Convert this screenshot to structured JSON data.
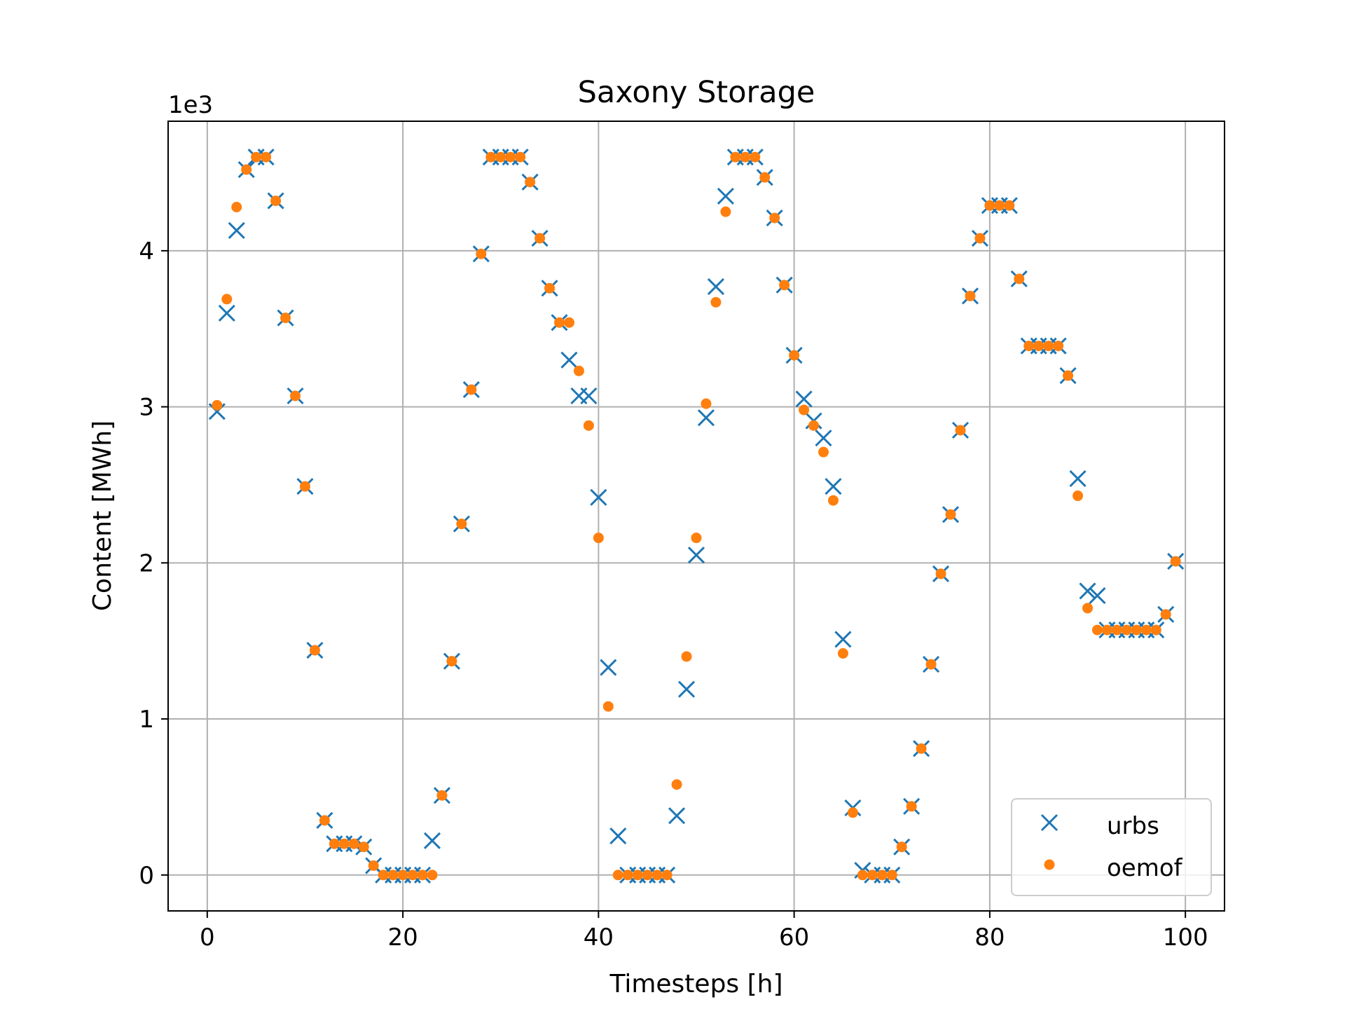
{
  "chart_data": {
    "type": "scatter",
    "title": "Saxony Storage",
    "xlabel": "Timesteps [h]",
    "ylabel": "Content [MWh]",
    "y_multiplier_label": "1e3",
    "xlim": [
      -4,
      104
    ],
    "ylim": [
      -0.23,
      4.83
    ],
    "xticks": [
      0,
      20,
      40,
      60,
      80,
      100
    ],
    "yticks": [
      0,
      1,
      2,
      3,
      4
    ],
    "grid": true,
    "legend_position": "lower right",
    "x": [
      1,
      2,
      3,
      4,
      5,
      6,
      7,
      8,
      9,
      10,
      11,
      12,
      13,
      14,
      15,
      16,
      17,
      18,
      19,
      20,
      21,
      22,
      23,
      24,
      25,
      26,
      27,
      28,
      29,
      30,
      31,
      32,
      33,
      34,
      35,
      36,
      37,
      38,
      39,
      40,
      41,
      42,
      43,
      44,
      45,
      46,
      47,
      48,
      49,
      50,
      51,
      52,
      53,
      54,
      55,
      56,
      57,
      58,
      59,
      60,
      61,
      62,
      63,
      64,
      65,
      66,
      67,
      68,
      69,
      70,
      71,
      72,
      73,
      74,
      75,
      76,
      77,
      78,
      79,
      80,
      81,
      82,
      83,
      84,
      85,
      86,
      87,
      88,
      89,
      90,
      91,
      92,
      93,
      94,
      95,
      96,
      97,
      98,
      99
    ],
    "series": [
      {
        "name": "urbs",
        "marker": "x",
        "color": "#1f77b4",
        "values": [
          2.97,
          3.6,
          4.13,
          4.52,
          4.6,
          4.6,
          4.32,
          3.57,
          3.07,
          2.49,
          1.44,
          0.35,
          0.2,
          0.2,
          0.2,
          0.18,
          0.06,
          0,
          0,
          0,
          0,
          0,
          0.22,
          0.51,
          1.37,
          2.25,
          3.11,
          3.98,
          4.6,
          4.6,
          4.6,
          4.6,
          4.44,
          4.08,
          3.76,
          3.54,
          3.3,
          3.07,
          3.07,
          2.42,
          1.33,
          0.25,
          0,
          0,
          0,
          0,
          0,
          0.38,
          1.19,
          2.05,
          2.93,
          3.77,
          4.35,
          4.6,
          4.6,
          4.6,
          4.47,
          4.21,
          3.78,
          3.33,
          3.05,
          2.91,
          2.8,
          2.49,
          1.51,
          0.43,
          0.03,
          0,
          0,
          0,
          0.18,
          0.44,
          0.81,
          1.35,
          1.93,
          2.31,
          2.85,
          3.71,
          4.08,
          4.29,
          4.29,
          4.29,
          3.82,
          3.39,
          3.39,
          3.39,
          3.39,
          3.2,
          2.54,
          1.82,
          1.79,
          1.57,
          1.57,
          1.57,
          1.57,
          1.57,
          1.57,
          1.67,
          2.01
        ]
      },
      {
        "name": "oemof",
        "marker": "o",
        "color": "#ff7f0e",
        "values": [
          3.01,
          3.69,
          4.28,
          4.52,
          4.6,
          4.6,
          4.32,
          3.57,
          3.07,
          2.49,
          1.44,
          0.35,
          0.2,
          0.2,
          0.2,
          0.18,
          0.06,
          0,
          0,
          0,
          0,
          0,
          0,
          0.51,
          1.37,
          2.25,
          3.11,
          3.98,
          4.6,
          4.6,
          4.6,
          4.6,
          4.44,
          4.08,
          3.76,
          3.54,
          3.54,
          3.23,
          2.88,
          2.16,
          1.08,
          0,
          0,
          0,
          0,
          0,
          0,
          0.58,
          1.4,
          2.16,
          3.02,
          3.67,
          4.25,
          4.6,
          4.6,
          4.6,
          4.47,
          4.21,
          3.78,
          3.33,
          2.98,
          2.88,
          2.71,
          2.4,
          1.42,
          0.4,
          0,
          0,
          0,
          0,
          0.18,
          0.44,
          0.81,
          1.35,
          1.93,
          2.31,
          2.85,
          3.71,
          4.08,
          4.29,
          4.29,
          4.29,
          3.82,
          3.39,
          3.39,
          3.39,
          3.39,
          3.2,
          2.43,
          1.71,
          1.57,
          1.57,
          1.57,
          1.57,
          1.57,
          1.57,
          1.57,
          1.67,
          2.01
        ]
      }
    ]
  }
}
